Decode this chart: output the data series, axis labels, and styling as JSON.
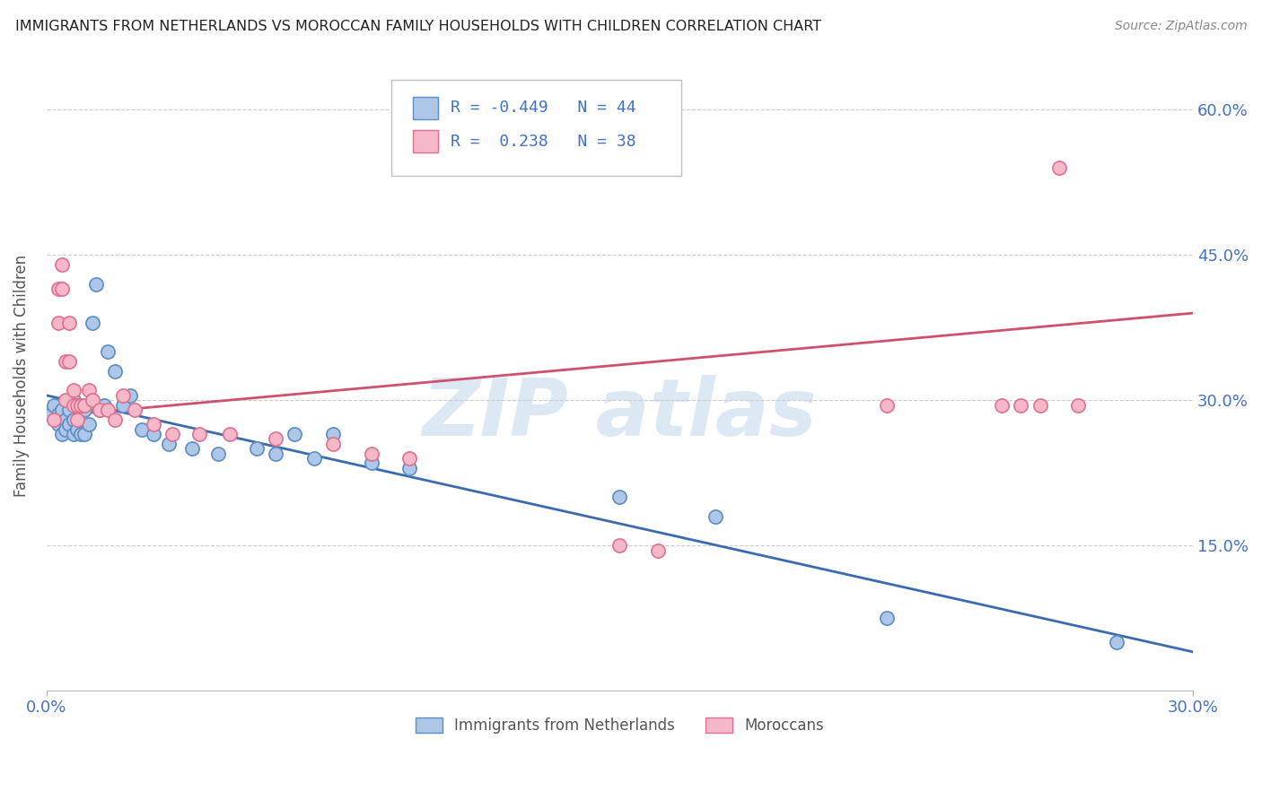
{
  "title": "IMMIGRANTS FROM NETHERLANDS VS MOROCCAN FAMILY HOUSEHOLDS WITH CHILDREN CORRELATION CHART",
  "source": "Source: ZipAtlas.com",
  "ylabel": "Family Households with Children",
  "legend_label1": "Immigrants from Netherlands",
  "legend_label2": "Moroccans",
  "legend_R1": "-0.449",
  "legend_N1": "44",
  "legend_R2": "0.238",
  "legend_N2": "38",
  "color_blue_fill": "#aec6e8",
  "color_blue_edge": "#5b8ec4",
  "color_pink_fill": "#f4b8c8",
  "color_pink_edge": "#e07090",
  "color_line_blue": "#3a6ab0",
  "color_line_pink": "#d05070",
  "color_axis": "#4472c4",
  "color_grid": "#cccccc",
  "color_title": "#222222",
  "color_source": "#888888",
  "color_ylabel": "#555555",
  "color_legend_text": "#4472c4",
  "color_legend_Rtext": "#4472c4",
  "color_watermark": "#dde8f5",
  "blue_points_x": [
    0.001,
    0.002,
    0.003,
    0.003,
    0.004,
    0.004,
    0.005,
    0.005,
    0.006,
    0.006,
    0.007,
    0.007,
    0.007,
    0.008,
    0.008,
    0.009,
    0.009,
    0.01,
    0.01,
    0.011,
    0.012,
    0.013,
    0.014,
    0.015,
    0.016,
    0.018,
    0.02,
    0.022,
    0.025,
    0.028,
    0.032,
    0.038,
    0.045,
    0.055,
    0.06,
    0.065,
    0.07,
    0.075,
    0.085,
    0.095,
    0.15,
    0.175,
    0.22,
    0.28
  ],
  "blue_points_y": [
    0.285,
    0.295,
    0.285,
    0.275,
    0.29,
    0.265,
    0.28,
    0.27,
    0.29,
    0.275,
    0.3,
    0.28,
    0.265,
    0.295,
    0.27,
    0.29,
    0.265,
    0.29,
    0.265,
    0.275,
    0.38,
    0.42,
    0.29,
    0.295,
    0.35,
    0.33,
    0.295,
    0.305,
    0.27,
    0.265,
    0.255,
    0.25,
    0.245,
    0.25,
    0.245,
    0.265,
    0.24,
    0.265,
    0.235,
    0.23,
    0.2,
    0.18,
    0.075,
    0.05
  ],
  "pink_points_x": [
    0.002,
    0.003,
    0.003,
    0.004,
    0.004,
    0.005,
    0.005,
    0.006,
    0.006,
    0.007,
    0.007,
    0.008,
    0.008,
    0.009,
    0.01,
    0.011,
    0.012,
    0.014,
    0.016,
    0.018,
    0.02,
    0.023,
    0.028,
    0.033,
    0.04,
    0.048,
    0.06,
    0.075,
    0.085,
    0.095,
    0.15,
    0.16,
    0.22,
    0.25,
    0.255,
    0.26,
    0.265,
    0.27
  ],
  "pink_points_y": [
    0.28,
    0.38,
    0.415,
    0.415,
    0.44,
    0.3,
    0.34,
    0.34,
    0.38,
    0.31,
    0.295,
    0.295,
    0.28,
    0.295,
    0.295,
    0.31,
    0.3,
    0.29,
    0.29,
    0.28,
    0.305,
    0.29,
    0.275,
    0.265,
    0.265,
    0.265,
    0.26,
    0.255,
    0.245,
    0.24,
    0.15,
    0.145,
    0.295,
    0.295,
    0.295,
    0.295,
    0.54,
    0.295
  ],
  "xlim": [
    0.0,
    0.3
  ],
  "ylim": [
    0.0,
    0.65
  ],
  "x_ticks": [
    0.0,
    0.3
  ],
  "x_tick_labels": [
    "0.0%",
    "30.0%"
  ],
  "y_ticks": [
    0.15,
    0.3,
    0.45,
    0.6
  ],
  "y_tick_labels": [
    "15.0%",
    "30.0%",
    "45.0%",
    "60.0%"
  ],
  "blue_line_x": [
    0.0,
    0.3
  ],
  "blue_line_y": [
    0.305,
    0.04
  ],
  "pink_line_x": [
    0.0,
    0.3
  ],
  "pink_line_y": [
    0.283,
    0.39
  ]
}
